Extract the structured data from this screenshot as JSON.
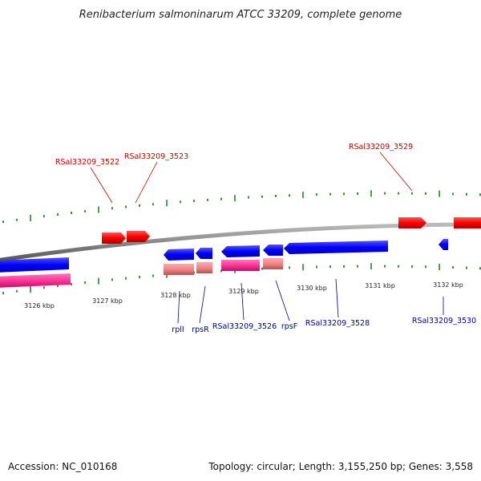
{
  "title": "Renibacterium salmoninarum ATCC 33209, complete genome",
  "footer": {
    "accession": "Accession: NC_010168",
    "summary": "Topology: circular; Length: 3,155,250 bp; Genes: 3,558"
  },
  "colors": {
    "forward_gene": "#ff0000",
    "reverse_gene": "#0000ff",
    "rna_gene": "#ff3399",
    "rna_gene_light": "#f08080",
    "backbone": "#888888",
    "tick": "#228822",
    "label_forward": "#cc0000",
    "label_reverse": "#000099"
  },
  "axis": {
    "unit": "kbp",
    "tick_labels": [
      "3126 kbp",
      "3127 kbp",
      "3128 kbp",
      "3129 kbp",
      "3130 kbp",
      "3131 kbp",
      "3132 kbp"
    ]
  },
  "gene_labels": {
    "forward": [
      "RSal33209_3522",
      "RSal33209_3523",
      "RSal33209_3529"
    ],
    "reverse": [
      "rplI",
      "rpsR",
      "RSal33209_3526",
      "rpsF",
      "RSal33209_3528",
      "RSal33209_3530"
    ]
  }
}
